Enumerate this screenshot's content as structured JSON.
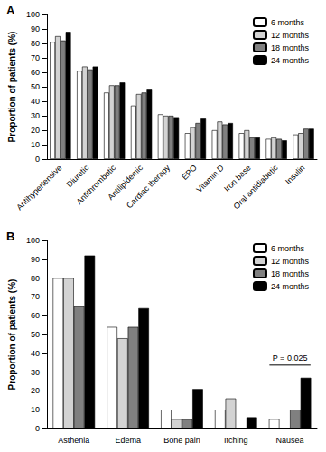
{
  "chart_data": [
    {
      "type": "bar",
      "title": "A",
      "y_label": "Proportion of patients (%)",
      "categories": [
        "Antihypertensive",
        "Diuretic",
        "Antithrombotic",
        "Antilipidemic",
        "Cardiac therapy",
        "EPO",
        "Vitamin D",
        "Iron base",
        "Oral antidiabetic",
        "Insulin"
      ],
      "series": [
        {
          "name": "6 months",
          "color": "#ffffff",
          "values": [
            81,
            61,
            46,
            37,
            31,
            18,
            20,
            18,
            14,
            17
          ]
        },
        {
          "name": "12 months",
          "color": "#d3d3d3",
          "values": [
            85,
            64,
            51,
            45,
            30,
            22,
            26,
            20,
            15,
            18
          ]
        },
        {
          "name": "18 months",
          "color": "#808080",
          "values": [
            82,
            62,
            51,
            46,
            30,
            25,
            24,
            15,
            14,
            21
          ]
        },
        {
          "name": "24 months",
          "color": "#000000",
          "values": [
            88,
            64,
            53,
            48,
            29,
            28,
            25,
            15,
            13,
            21
          ]
        }
      ],
      "ylim": [
        0,
        100
      ],
      "yticks": [
        0,
        10,
        20,
        30,
        40,
        50,
        60,
        70,
        80,
        90,
        100
      ],
      "grid": false,
      "legend": "upper right"
    },
    {
      "type": "bar",
      "title": "B",
      "y_label": "Proportion of patients (%)",
      "categories": [
        "Asthenia",
        "Edema",
        "Bone pain",
        "Itching",
        "Nausea"
      ],
      "series": [
        {
          "name": "6 months",
          "color": "#ffffff",
          "values": [
            80,
            54,
            10,
            10,
            5
          ]
        },
        {
          "name": "12 months",
          "color": "#d3d3d3",
          "values": [
            80,
            48,
            5,
            16,
            0
          ]
        },
        {
          "name": "18 months",
          "color": "#808080",
          "values": [
            65,
            54,
            5,
            0,
            10
          ]
        },
        {
          "name": "24 months",
          "color": "#000000",
          "values": [
            92,
            64,
            21,
            6,
            27
          ]
        }
      ],
      "ylim": [
        0,
        100
      ],
      "yticks": [
        0,
        10,
        20,
        30,
        40,
        50,
        60,
        70,
        80,
        90,
        100
      ],
      "grid": false,
      "legend": "upper right",
      "annotations": [
        {
          "text": "P = 0.025",
          "category": "Nausea"
        }
      ]
    }
  ]
}
